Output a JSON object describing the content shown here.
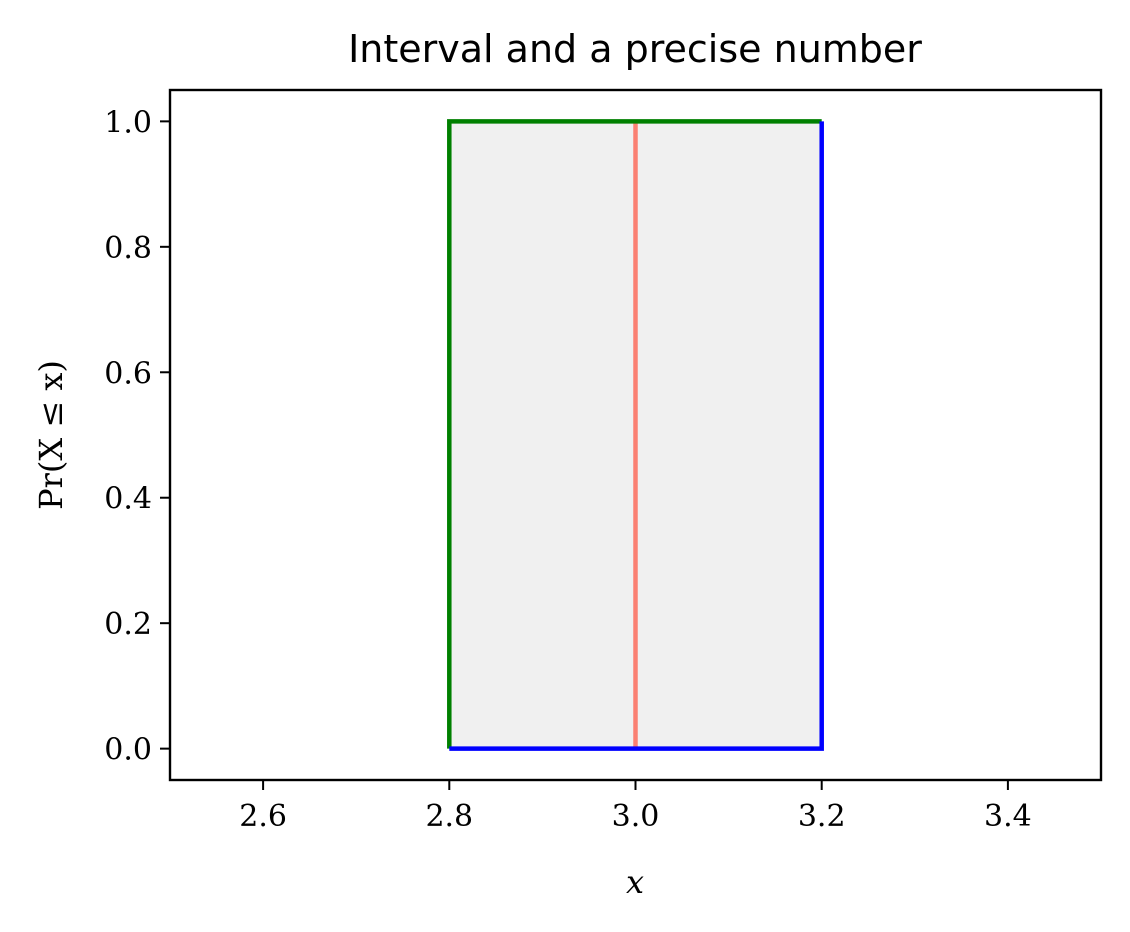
{
  "chart_data": {
    "type": "line",
    "title": "Interval and a precise number",
    "xlabel": "x",
    "ylabel": "Pr(X ≤ x)",
    "xlim": [
      2.5,
      3.5
    ],
    "ylim": [
      -0.05,
      1.05
    ],
    "x_ticks": [
      2.6,
      2.8,
      3.0,
      3.2,
      3.4
    ],
    "x_tick_labels": [
      "2.6",
      "2.8",
      "3.0",
      "3.2",
      "3.4"
    ],
    "y_ticks": [
      0.0,
      0.2,
      0.4,
      0.6,
      0.8,
      1.0
    ],
    "y_tick_labels": [
      "0.0",
      "0.2",
      "0.4",
      "0.6",
      "0.8",
      "1.0"
    ],
    "grid": false,
    "interval": {
      "lower": 2.8,
      "upper": 3.2,
      "fill_color": "#f0f0f0"
    },
    "series": [
      {
        "x": [
          2.8,
          2.8,
          3.2
        ],
        "y": [
          0.0,
          1.0,
          1.0
        ],
        "color": "#008000"
      },
      {
        "x": [
          2.8,
          3.2,
          3.2
        ],
        "y": [
          0.0,
          0.0,
          1.0
        ],
        "color": "#0000ff"
      },
      {
        "x": [
          3.0,
          3.0
        ],
        "y": [
          0.0,
          1.0
        ],
        "color": "#fa8072"
      }
    ]
  }
}
